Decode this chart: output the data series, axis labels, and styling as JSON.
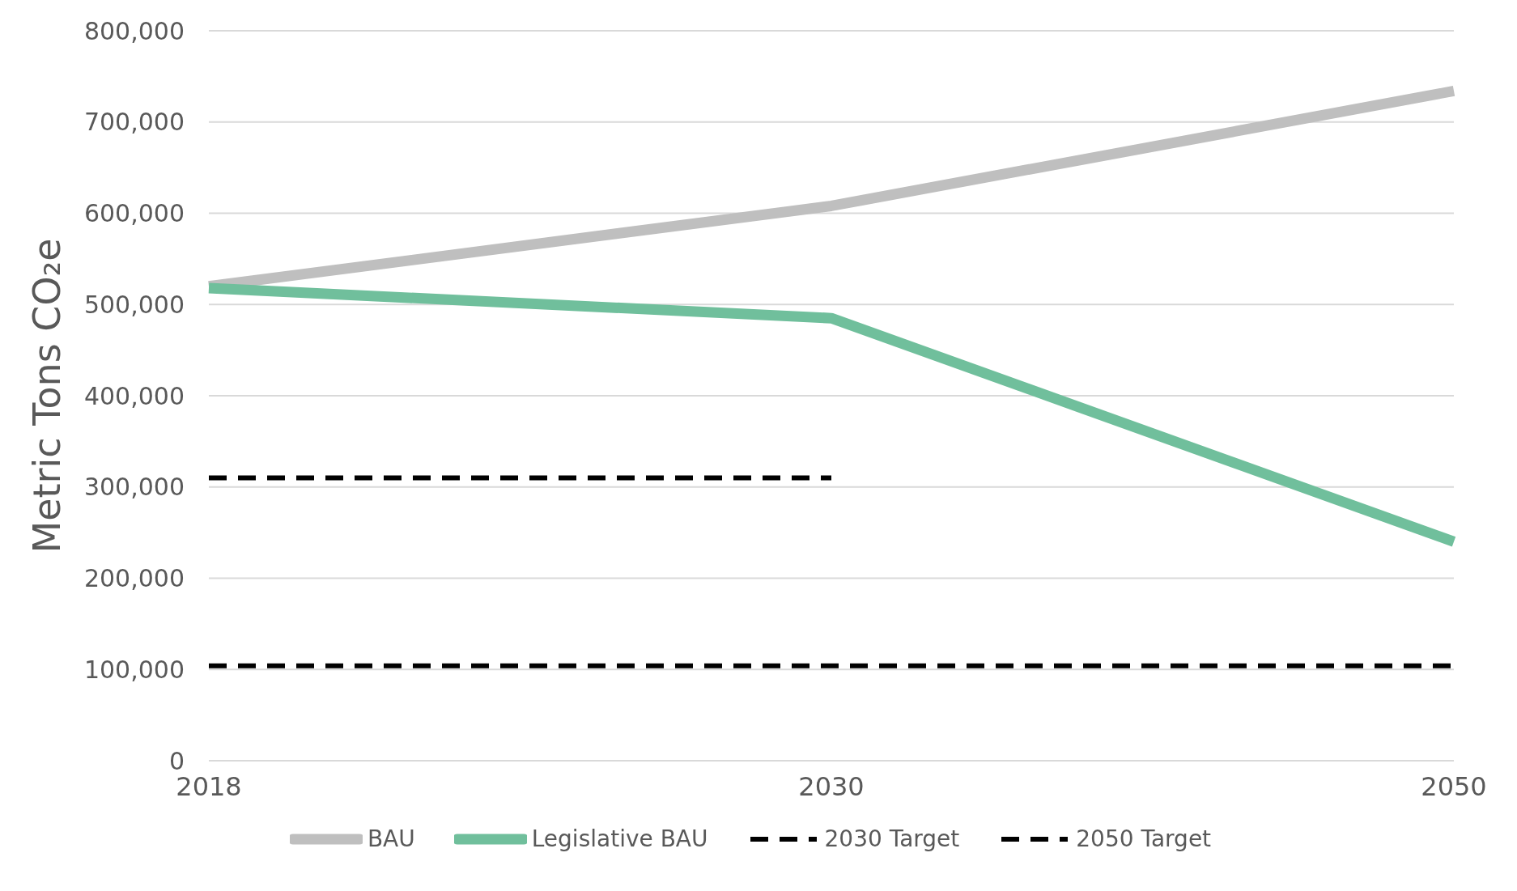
{
  "chart_data": {
    "type": "line",
    "ylabel": "Metric Tons CO₂e",
    "categories": [
      "2018",
      "2030",
      "2050"
    ],
    "series": [
      {
        "name": "BAU",
        "color": "#bfbfbf",
        "values": [
          520000,
          608000,
          734000
        ],
        "line_style": "solid"
      },
      {
        "name": "Legislative BAU",
        "color": "#70bf9c",
        "values": [
          518000,
          485000,
          240000
        ],
        "line_style": "solid"
      },
      {
        "name": "2030 Target",
        "color": "#000000",
        "values": [
          310000,
          310000,
          null
        ],
        "line_style": "dashed"
      },
      {
        "name": "2050 Target",
        "color": "#000000",
        "values": [
          104000,
          104000,
          104000
        ],
        "line_style": "dashed"
      }
    ],
    "ylim": [
      0,
      800000
    ],
    "yticks": [
      0,
      {
        "value": 100000,
        "label": "100,000"
      },
      {
        "value": 200000,
        "label": "200,000"
      },
      {
        "value": 300000,
        "label": "300,000"
      },
      {
        "value": 400000,
        "label": "400,000"
      },
      {
        "value": 500000,
        "label": "500,000"
      },
      {
        "value": 600000,
        "label": "600,000"
      },
      {
        "value": 700000,
        "label": "700,000"
      },
      {
        "value": 800000,
        "label": "800,000"
      }
    ],
    "grid": "y",
    "legend": "bottom",
    "marker": "none"
  }
}
